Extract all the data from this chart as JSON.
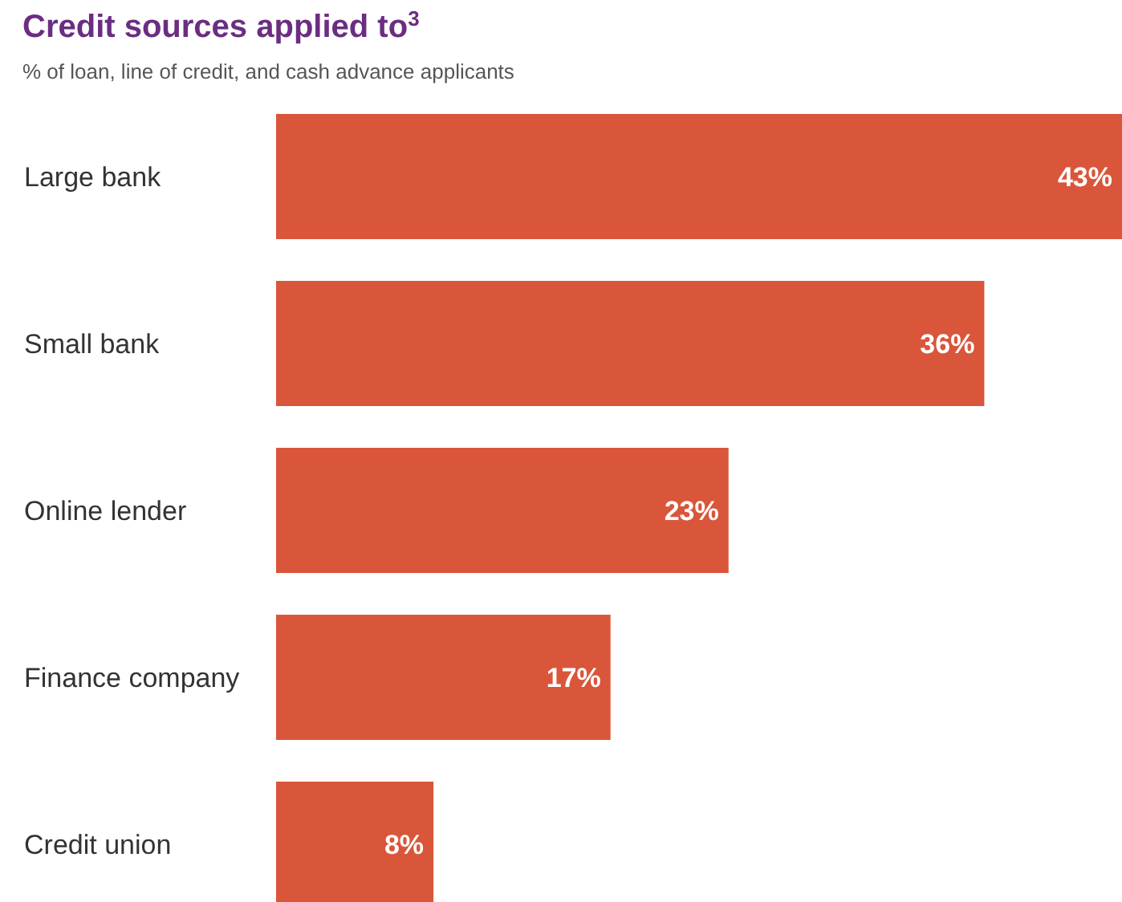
{
  "chart_data": {
    "type": "bar",
    "orientation": "horizontal",
    "title": "Credit sources applied to$^{3}$",
    "subtitle": "% of loan, line of credit, and cash advance applicants",
    "categories": [
      "Large bank",
      "Small bank",
      "Online lender",
      "Finance company",
      "Credit union"
    ],
    "values": [
      43,
      36,
      23,
      17,
      8
    ],
    "color": "#d9563a",
    "data_labels": true,
    "value_labels": [
      "43%",
      "36%",
      "23%",
      "17%",
      "8%"
    ]
  }
}
